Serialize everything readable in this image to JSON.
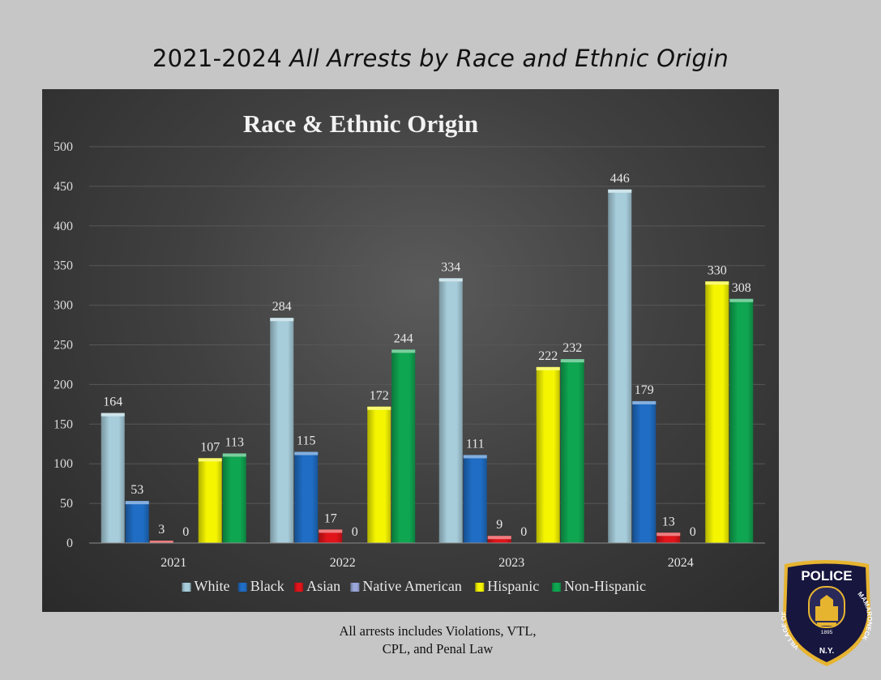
{
  "page": {
    "title_plain": "2021-2024",
    "title_italic": "All Arrests by Race and Ethnic Origin",
    "footnote_line1": "All arrests includes Violations, VTL,",
    "footnote_line2": "CPL, and Penal Law"
  },
  "badge": {
    "top_text": "POLICE",
    "left_text": "VILLAGE OF",
    "right_text": "MAMARONECK",
    "bottom_text": "N.Y.",
    "year": "1895",
    "colors": {
      "navy": "#16163f",
      "gold": "#e7b430"
    }
  },
  "chart_data": {
    "type": "bar",
    "title": "Race & Ethnic Origin",
    "xlabel": "",
    "ylabel": "",
    "categories": [
      "2021",
      "2022",
      "2023",
      "2024"
    ],
    "series": [
      {
        "name": "White",
        "values": [
          164,
          284,
          334,
          446
        ],
        "color": "#a7cddb"
      },
      {
        "name": "Black",
        "values": [
          53,
          115,
          111,
          179
        ],
        "color": "#1f6dc4"
      },
      {
        "name": "Asian",
        "values": [
          3,
          17,
          9,
          13
        ],
        "color": "#e0141a"
      },
      {
        "name": "Native American",
        "values": [
          0,
          0,
          0,
          0
        ],
        "color": "#9aa6d8"
      },
      {
        "name": "Hispanic",
        "values": [
          107,
          172,
          222,
          330
        ],
        "color": "#f5f500"
      },
      {
        "name": "Non-Hispanic",
        "values": [
          113,
          244,
          232,
          308
        ],
        "color": "#0fa651"
      }
    ],
    "ylim": [
      0,
      500
    ],
    "yticks": [
      0,
      50,
      100,
      150,
      200,
      250,
      300,
      350,
      400,
      450,
      500
    ],
    "grid": true,
    "legend_position": "bottom",
    "data_labels": true
  }
}
